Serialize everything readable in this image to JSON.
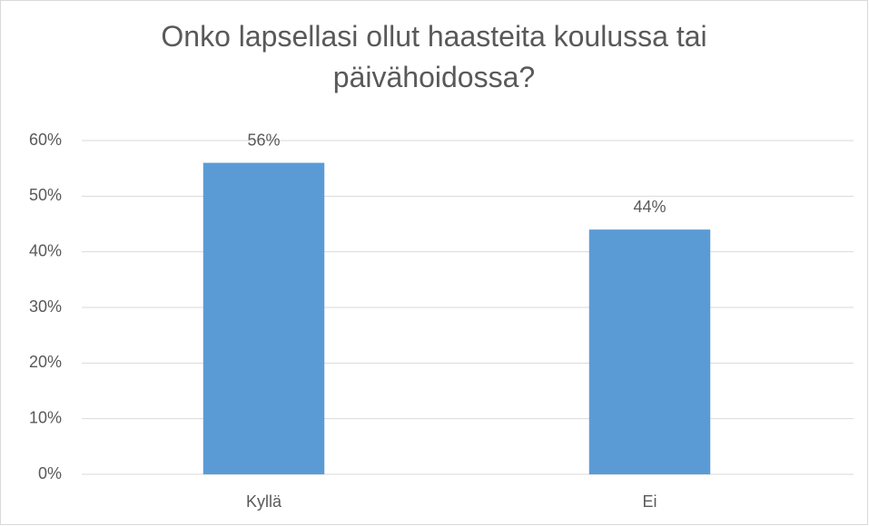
{
  "chart_data": {
    "type": "bar",
    "title": "Onko lapsellasi ollut haasteita koulussa tai päivähoidossa?",
    "categories": [
      "Kyllä",
      "Ei"
    ],
    "values": [
      56,
      44
    ],
    "value_labels": [
      "56%",
      "44%"
    ],
    "color": "#5b9bd5",
    "ylim": [
      0,
      60
    ],
    "yticks": [
      {
        "value": 0,
        "label": "0%"
      },
      {
        "value": 10,
        "label": "10%"
      },
      {
        "value": 20,
        "label": "20%"
      },
      {
        "value": 30,
        "label": "30%"
      },
      {
        "value": 40,
        "label": "40%"
      },
      {
        "value": 50,
        "label": "50%"
      },
      {
        "value": 60,
        "label": "60%"
      }
    ],
    "grid": true
  }
}
